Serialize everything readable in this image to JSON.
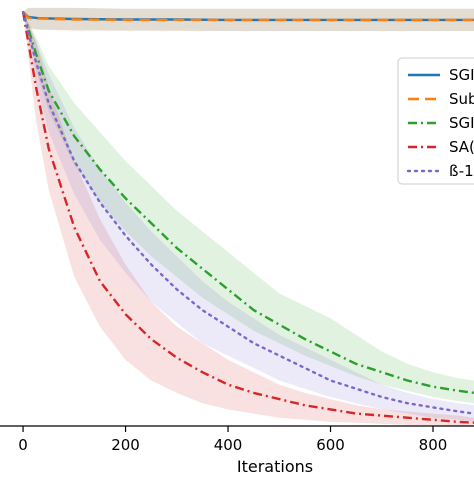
{
  "chart_data": {
    "type": "line",
    "title": "",
    "xlabel": "Iterations",
    "ylabel": "",
    "xlim": [
      -45,
      880
    ],
    "ylim": [
      0,
      1.0
    ],
    "x_ticks": [
      0,
      200,
      400,
      600,
      800
    ],
    "x_tick_labels": [
      "0",
      "200",
      "400",
      "600",
      "800"
    ],
    "grid": false,
    "legend_position": "right",
    "series": [
      {
        "name": "SGD",
        "legend_label": "SGI",
        "color": "#1f77b4",
        "linestyle": "solid",
        "x": [
          0,
          10,
          30,
          60,
          100,
          200,
          300,
          400,
          500,
          600,
          700,
          800,
          880
        ],
        "y": [
          1.0,
          0.988,
          0.985,
          0.984,
          0.983,
          0.982,
          0.982,
          0.981,
          0.981,
          0.981,
          0.981,
          0.981,
          0.981
        ],
        "band_lower": [
          1.0,
          0.962,
          0.958,
          0.957,
          0.956,
          0.955,
          0.955,
          0.954,
          0.954,
          0.954,
          0.954,
          0.954,
          0.954
        ],
        "band_upper": [
          1.0,
          1.01,
          1.01,
          1.01,
          1.01,
          1.008,
          1.008,
          1.008,
          1.008,
          1.008,
          1.008,
          1.008,
          1.008
        ]
      },
      {
        "name": "Subsampling",
        "legend_label": "Sub",
        "color": "#ff7f0e",
        "linestyle": "dashed",
        "x": [
          0,
          10,
          30,
          60,
          100,
          200,
          300,
          400,
          500,
          600,
          700,
          800,
          880
        ],
        "y": [
          1.0,
          0.986,
          0.984,
          0.983,
          0.982,
          0.981,
          0.981,
          0.981,
          0.981,
          0.981,
          0.981,
          0.981,
          0.981
        ],
        "band_lower": [
          1.0,
          0.96,
          0.957,
          0.956,
          0.955,
          0.955,
          0.954,
          0.954,
          0.954,
          0.954,
          0.954,
          0.954,
          0.954
        ],
        "band_upper": [
          1.0,
          1.01,
          1.01,
          1.01,
          1.01,
          1.008,
          1.008,
          1.008,
          1.008,
          1.008,
          1.008,
          1.008,
          1.008
        ]
      },
      {
        "name": "SGD-variant",
        "legend_label": "SGI",
        "color": "#2ca02c",
        "linestyle": "dashdot",
        "x": [
          0,
          25,
          50,
          100,
          150,
          200,
          250,
          300,
          350,
          400,
          450,
          500,
          550,
          600,
          650,
          700,
          750,
          800,
          850,
          880
        ],
        "y": [
          1.0,
          0.9,
          0.81,
          0.7,
          0.62,
          0.55,
          0.49,
          0.43,
          0.38,
          0.33,
          0.28,
          0.245,
          0.21,
          0.18,
          0.15,
          0.13,
          0.11,
          0.095,
          0.085,
          0.08
        ],
        "band_lower": [
          1.0,
          0.86,
          0.76,
          0.63,
          0.54,
          0.47,
          0.41,
          0.36,
          0.31,
          0.27,
          0.23,
          0.2,
          0.17,
          0.145,
          0.12,
          0.1,
          0.085,
          0.07,
          0.06,
          0.055
        ],
        "band_upper": [
          1.0,
          0.94,
          0.87,
          0.78,
          0.71,
          0.64,
          0.58,
          0.52,
          0.47,
          0.42,
          0.37,
          0.32,
          0.29,
          0.26,
          0.22,
          0.18,
          0.15,
          0.13,
          0.115,
          0.11
        ]
      },
      {
        "name": "SAGA",
        "legend_label": "SA(",
        "color": "#d62728",
        "linestyle": "dashdot",
        "x": [
          0,
          25,
          50,
          100,
          150,
          200,
          250,
          300,
          350,
          400,
          450,
          500,
          550,
          600,
          650,
          700,
          750,
          800,
          850,
          880
        ],
        "y": [
          1.0,
          0.82,
          0.67,
          0.48,
          0.35,
          0.27,
          0.21,
          0.165,
          0.13,
          0.1,
          0.08,
          0.065,
          0.05,
          0.04,
          0.03,
          0.025,
          0.02,
          0.015,
          0.01,
          0.008
        ],
        "band_lower": [
          1.0,
          0.74,
          0.57,
          0.36,
          0.24,
          0.16,
          0.11,
          0.08,
          0.055,
          0.04,
          0.03,
          0.02,
          0.015,
          0.01,
          0.008,
          0.005,
          0.003,
          0.002,
          0.001,
          0.0
        ],
        "band_upper": [
          1.0,
          0.93,
          0.82,
          0.64,
          0.5,
          0.39,
          0.3,
          0.24,
          0.2,
          0.16,
          0.13,
          0.1,
          0.08,
          0.065,
          0.05,
          0.04,
          0.035,
          0.03,
          0.025,
          0.02
        ]
      },
      {
        "name": "ß-1",
        "legend_label": "ß-1",
        "color": "#7b68cc",
        "linestyle": "dotted",
        "x": [
          0,
          25,
          50,
          100,
          150,
          200,
          250,
          300,
          350,
          400,
          450,
          500,
          550,
          600,
          650,
          700,
          750,
          800,
          850,
          880
        ],
        "y": [
          1.0,
          0.88,
          0.78,
          0.64,
          0.54,
          0.46,
          0.39,
          0.33,
          0.28,
          0.24,
          0.2,
          0.17,
          0.14,
          0.11,
          0.09,
          0.07,
          0.055,
          0.045,
          0.035,
          0.03
        ],
        "band_lower": [
          1.0,
          0.83,
          0.71,
          0.56,
          0.45,
          0.37,
          0.3,
          0.25,
          0.2,
          0.17,
          0.14,
          0.11,
          0.09,
          0.07,
          0.055,
          0.04,
          0.03,
          0.02,
          0.015,
          0.01
        ],
        "band_upper": [
          1.0,
          0.93,
          0.85,
          0.72,
          0.62,
          0.54,
          0.47,
          0.41,
          0.35,
          0.3,
          0.26,
          0.22,
          0.19,
          0.16,
          0.13,
          0.1,
          0.08,
          0.065,
          0.055,
          0.05
        ]
      }
    ]
  }
}
